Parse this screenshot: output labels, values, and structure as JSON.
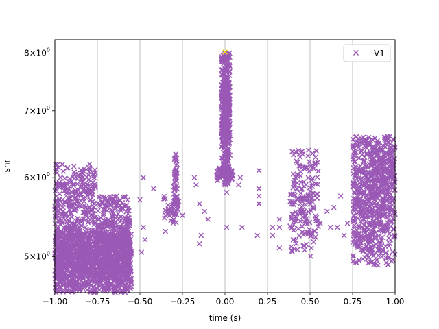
{
  "chart_data": {
    "type": "scatter",
    "title": "",
    "xlabel": "time (s)",
    "ylabel": "snr",
    "xlim": [
      -1.0,
      1.0
    ],
    "ylim": [
      4.6,
      8.25
    ],
    "yscale": "log",
    "grid": "x-only",
    "legend": "top-right",
    "x_ticks": [
      -1.0,
      -0.75,
      -0.5,
      -0.25,
      0.0,
      0.25,
      0.5,
      0.75,
      1.0
    ],
    "x_tick_labels": [
      "−1.00",
      "−0.75",
      "−0.50",
      "−0.25",
      "0.00",
      "0.25",
      "0.50",
      "0.75",
      "1.00"
    ],
    "y_ticks": [
      {
        "value": 5,
        "mantissa": "5",
        "base": "10",
        "exp": "0"
      },
      {
        "value": 6,
        "mantissa": "6",
        "base": "10",
        "exp": "0"
      },
      {
        "value": 7,
        "mantissa": "7",
        "base": "10",
        "exp": "0"
      },
      {
        "value": 8,
        "mantissa": "8",
        "base": "10",
        "exp": "0"
      }
    ],
    "series": [
      {
        "name": "V1",
        "marker": "x",
        "color": "#9b59b6",
        "clusters": [
          {
            "x": [
              -1.0,
              -0.55
            ],
            "y": [
              4.6,
              5.3
            ],
            "n": 1400
          },
          {
            "x": [
              -1.0,
              -0.76
            ],
            "y": [
              5.0,
              6.2
            ],
            "n": 350
          },
          {
            "x": [
              -0.75,
              -0.56
            ],
            "y": [
              5.0,
              5.75
            ],
            "n": 250
          },
          {
            "x": [
              -0.3,
              -0.28
            ],
            "y": [
              5.5,
              6.35
            ],
            "n": 60
          },
          {
            "x": [
              -0.36,
              -0.27
            ],
            "y": [
              5.4,
              5.75
            ],
            "n": 40
          },
          {
            "x": [
              -0.02,
              0.03
            ],
            "y": [
              5.9,
              8.0
            ],
            "n": 450
          },
          {
            "x": [
              -0.05,
              0.05
            ],
            "y": [
              5.95,
              6.15
            ],
            "n": 60
          },
          {
            "x": [
              0.38,
              0.55
            ],
            "y": [
              5.0,
              6.4
            ],
            "n": 180
          },
          {
            "x": [
              0.75,
              1.0
            ],
            "y": [
              4.9,
              6.6
            ],
            "n": 700
          },
          {
            "x": [
              0.86,
              1.0
            ],
            "y": [
              5.9,
              6.6
            ],
            "n": 80
          }
        ],
        "points": [
          [
            -0.48,
            6.0
          ],
          [
            -0.42,
            5.85
          ],
          [
            -0.5,
            5.7
          ],
          [
            -0.48,
            5.35
          ],
          [
            -0.47,
            5.2
          ],
          [
            -0.49,
            5.05
          ],
          [
            -0.35,
            5.3
          ],
          [
            -0.25,
            5.5
          ],
          [
            -0.18,
            6.0
          ],
          [
            -0.17,
            5.9
          ],
          [
            -0.15,
            5.65
          ],
          [
            -0.14,
            5.25
          ],
          [
            -0.15,
            5.15
          ],
          [
            -0.12,
            5.55
          ],
          [
            -0.1,
            5.45
          ],
          [
            0.08,
            5.9
          ],
          [
            0.09,
            6.0
          ],
          [
            0.1,
            5.35
          ],
          [
            0.19,
            5.25
          ],
          [
            0.2,
            5.85
          ],
          [
            0.2,
            5.75
          ],
          [
            0.2,
            6.1
          ],
          [
            0.2,
            5.65
          ],
          [
            0.28,
            5.25
          ],
          [
            0.28,
            5.35
          ],
          [
            0.32,
            5.45
          ],
          [
            0.32,
            5.1
          ],
          [
            0.32,
            5.35
          ],
          [
            0.56,
            5.4
          ],
          [
            0.6,
            5.55
          ],
          [
            0.62,
            5.35
          ],
          [
            0.64,
            5.6
          ],
          [
            0.66,
            5.35
          ],
          [
            0.68,
            5.75
          ],
          [
            0.7,
            5.25
          ],
          [
            0.72,
            5.4
          ],
          [
            0.01,
            5.35
          ],
          [
            0.01,
            5.8
          ]
        ]
      },
      {
        "name": "",
        "marker": "x",
        "color": "#f5e20c",
        "points": [
          [
            0.0,
            8.02
          ]
        ]
      }
    ]
  }
}
